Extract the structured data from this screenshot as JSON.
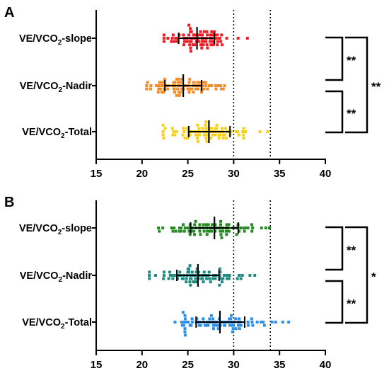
{
  "chart_data": [
    {
      "panel": "A",
      "type": "scatter",
      "categories": [
        {
          "main": "VE/VCO",
          "sub": "2",
          "suffix": "-slope"
        },
        {
          "main": "VE/VCO",
          "sub": "2",
          "suffix": "-Nadir"
        },
        {
          "main": "VE/VCO",
          "sub": "2",
          "suffix": "-Total"
        }
      ],
      "xlim": [
        15,
        40
      ],
      "xticks": [
        "15",
        "20",
        "25",
        "30",
        "35",
        "40"
      ],
      "reference_lines": [
        30,
        34
      ],
      "series": [
        {
          "color": "#ee1c24",
          "mean": 26.0,
          "sd_low": 24.0,
          "sd_high": 27.9,
          "min": 22.4,
          "max": 31.5
        },
        {
          "color": "#f28c28",
          "mean": 24.5,
          "sd_low": 22.5,
          "sd_high": 26.5,
          "min": 20.5,
          "max": 29.0
        },
        {
          "color": "#f7d117",
          "mean": 27.3,
          "sd_low": 25.1,
          "sd_high": 29.6,
          "min": 22.3,
          "max": 33.7
        }
      ],
      "brackets": [
        {
          "from": 0,
          "to": 1,
          "label": "**"
        },
        {
          "from": 1,
          "to": 2,
          "label": "**"
        },
        {
          "from": 0,
          "to": 2,
          "label": "**"
        }
      ]
    },
    {
      "panel": "B",
      "type": "scatter",
      "categories": [
        {
          "main": "VE/VCO",
          "sub": "2",
          "suffix": "-slope"
        },
        {
          "main": "VE/VCO",
          "sub": "2",
          "suffix": "-Nadir"
        },
        {
          "main": "VE/VCO",
          "sub": "2",
          "suffix": "-Total"
        }
      ],
      "xlim": [
        15,
        40
      ],
      "xticks": [
        "15",
        "20",
        "25",
        "30",
        "35",
        "40"
      ],
      "reference_lines": [
        30,
        34
      ],
      "series": [
        {
          "color": "#238b22",
          "mean": 27.9,
          "sd_low": 25.3,
          "sd_high": 30.5,
          "min": 21.8,
          "max": 33.9
        },
        {
          "color": "#1f8a80",
          "mean": 26.1,
          "sd_low": 23.8,
          "sd_high": 28.4,
          "min": 20.8,
          "max": 32.3
        },
        {
          "color": "#2f8fe6",
          "mean": 28.5,
          "sd_low": 25.9,
          "sd_high": 31.2,
          "min": 23.6,
          "max": 36.0
        }
      ],
      "brackets": [
        {
          "from": 0,
          "to": 1,
          "label": "**"
        },
        {
          "from": 1,
          "to": 2,
          "label": "**"
        },
        {
          "from": 0,
          "to": 2,
          "label": "*"
        }
      ]
    }
  ]
}
